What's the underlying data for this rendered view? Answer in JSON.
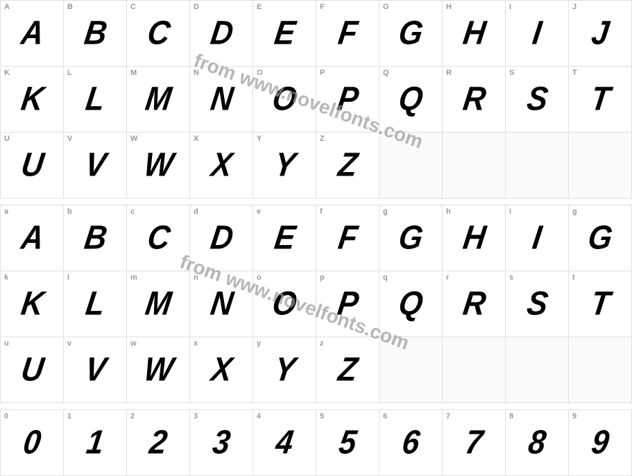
{
  "watermark": "from www.novelfonts.com",
  "rows": [
    {
      "type": "glyphs",
      "cells": [
        {
          "label": "A",
          "glyph": "A"
        },
        {
          "label": "B",
          "glyph": "B"
        },
        {
          "label": "C",
          "glyph": "C"
        },
        {
          "label": "D",
          "glyph": "D"
        },
        {
          "label": "E",
          "glyph": "E"
        },
        {
          "label": "F",
          "glyph": "F"
        },
        {
          "label": "G",
          "glyph": "G"
        },
        {
          "label": "H",
          "glyph": "H"
        },
        {
          "label": "I",
          "glyph": "I"
        },
        {
          "label": "J",
          "glyph": "J"
        }
      ]
    },
    {
      "type": "glyphs",
      "cells": [
        {
          "label": "K",
          "glyph": "K"
        },
        {
          "label": "L",
          "glyph": "L"
        },
        {
          "label": "M",
          "glyph": "M"
        },
        {
          "label": "N",
          "glyph": "N"
        },
        {
          "label": "O",
          "glyph": "O"
        },
        {
          "label": "P",
          "glyph": "P"
        },
        {
          "label": "Q",
          "glyph": "Q"
        },
        {
          "label": "R",
          "glyph": "R"
        },
        {
          "label": "S",
          "glyph": "S"
        },
        {
          "label": "T",
          "glyph": "T"
        }
      ]
    },
    {
      "type": "glyphs",
      "cells": [
        {
          "label": "U",
          "glyph": "U"
        },
        {
          "label": "V",
          "glyph": "V"
        },
        {
          "label": "W",
          "glyph": "W"
        },
        {
          "label": "X",
          "glyph": "X"
        },
        {
          "label": "Y",
          "glyph": "Y"
        },
        {
          "label": "Z",
          "glyph": "Z"
        },
        {
          "label": "",
          "glyph": "",
          "empty": true
        },
        {
          "label": "",
          "glyph": "",
          "empty": true
        },
        {
          "label": "",
          "glyph": "",
          "empty": true
        },
        {
          "label": "",
          "glyph": "",
          "empty": true
        }
      ]
    },
    {
      "type": "spacer"
    },
    {
      "type": "glyphs",
      "cells": [
        {
          "label": "a",
          "glyph": "A"
        },
        {
          "label": "b",
          "glyph": "B"
        },
        {
          "label": "c",
          "glyph": "C"
        },
        {
          "label": "d",
          "glyph": "D"
        },
        {
          "label": "e",
          "glyph": "E"
        },
        {
          "label": "f",
          "glyph": "F"
        },
        {
          "label": "g",
          "glyph": "G"
        },
        {
          "label": "h",
          "glyph": "H"
        },
        {
          "label": "i",
          "glyph": "I"
        },
        {
          "label": "g",
          "glyph": "G"
        }
      ]
    },
    {
      "type": "glyphs",
      "cells": [
        {
          "label": "k",
          "glyph": "K"
        },
        {
          "label": "l",
          "glyph": "L"
        },
        {
          "label": "m",
          "glyph": "M"
        },
        {
          "label": "n",
          "glyph": "N"
        },
        {
          "label": "o",
          "glyph": "O"
        },
        {
          "label": "p",
          "glyph": "P"
        },
        {
          "label": "q",
          "glyph": "Q"
        },
        {
          "label": "r",
          "glyph": "R"
        },
        {
          "label": "s",
          "glyph": "S"
        },
        {
          "label": "t",
          "glyph": "T"
        }
      ]
    },
    {
      "type": "glyphs",
      "cells": [
        {
          "label": "u",
          "glyph": "U"
        },
        {
          "label": "v",
          "glyph": "V"
        },
        {
          "label": "w",
          "glyph": "W"
        },
        {
          "label": "x",
          "glyph": "X"
        },
        {
          "label": "y",
          "glyph": "Y"
        },
        {
          "label": "z",
          "glyph": "Z"
        },
        {
          "label": "",
          "glyph": "",
          "empty": true
        },
        {
          "label": "",
          "glyph": "",
          "empty": true
        },
        {
          "label": "",
          "glyph": "",
          "empty": true
        },
        {
          "label": "",
          "glyph": "",
          "empty": true
        }
      ]
    },
    {
      "type": "spacer"
    },
    {
      "type": "glyphs",
      "cells": [
        {
          "label": "0",
          "glyph": "0"
        },
        {
          "label": "1",
          "glyph": "1"
        },
        {
          "label": "2",
          "glyph": "2"
        },
        {
          "label": "3",
          "glyph": "3"
        },
        {
          "label": "4",
          "glyph": "4"
        },
        {
          "label": "5",
          "glyph": "5"
        },
        {
          "label": "6",
          "glyph": "6"
        },
        {
          "label": "7",
          "glyph": "7"
        },
        {
          "label": "8",
          "glyph": "8"
        },
        {
          "label": "9",
          "glyph": "9"
        }
      ]
    }
  ],
  "colors": {
    "border": "#e0e0e0",
    "label": "#999999",
    "glyph": "#000000",
    "watermark": "#999999",
    "background": "#ffffff"
  }
}
